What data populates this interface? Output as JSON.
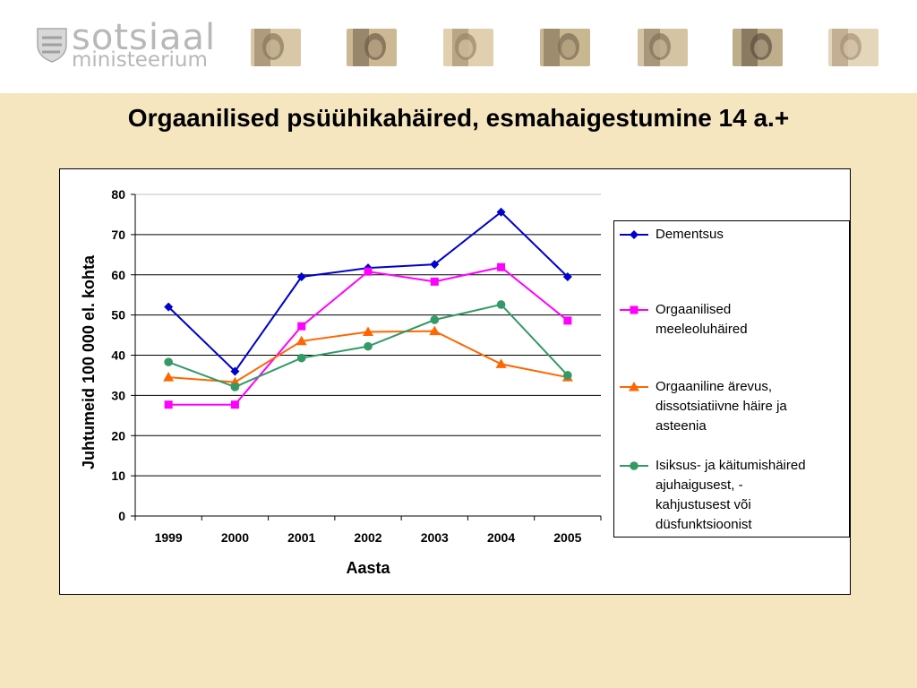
{
  "header": {
    "logo_word1": "sotsiaal",
    "logo_word2": "ministeerium",
    "photos": [
      "portrait-photo-1",
      "portrait-photo-2",
      "portrait-photo-3",
      "portrait-photo-4",
      "portrait-photo-5",
      "portrait-photo-6",
      "portrait-photo-7"
    ]
  },
  "title": "Orgaanilised psüühikahäired, esmahaigestumine 14 a.+",
  "chart_data": {
    "type": "line",
    "title": "Orgaanilised psüühikahäired, esmahaigestumine 14 a.+",
    "xlabel": "Aasta",
    "ylabel": "Juhtumeid 100 000 el. kohta",
    "categories": [
      "1999",
      "2000",
      "2001",
      "2002",
      "2003",
      "2004",
      "2005"
    ],
    "ylim": [
      0,
      80
    ],
    "yticks": [
      0,
      10,
      20,
      30,
      40,
      50,
      60,
      70,
      80
    ],
    "grid": true,
    "legend_position": "right",
    "series": [
      {
        "name": "Dementsus",
        "color": "#0000cc",
        "marker": "diamond",
        "values": [
          52,
          36,
          59.5,
          61.7,
          62.6,
          75.6,
          59.5
        ]
      },
      {
        "name": "Orgaanilised meeleoluhäired",
        "color": "#ff00ff",
        "marker": "square",
        "values": [
          27.7,
          27.7,
          47.2,
          60.8,
          58.3,
          61.9,
          48.6
        ]
      },
      {
        "name": "Orgaaniline ärevus, dissotsiatiivne häire ja asteenia",
        "color": "#ff6600",
        "marker": "triangle",
        "values": [
          34.5,
          33.3,
          43.5,
          45.8,
          46,
          37.8,
          34.5
        ]
      },
      {
        "name": "Isiksus- ja käitumishäired ajuhaigusest, -kahjustusest või düsfunktsioonist",
        "color": "#339966",
        "marker": "circle",
        "values": [
          38.3,
          32.1,
          39.3,
          42.2,
          48.8,
          52.6,
          35
        ]
      }
    ]
  },
  "legend_lines": [
    [
      "Dementsus"
    ],
    [
      "Orgaanilised",
      "meeleoluhäired"
    ],
    [
      "Orgaaniline ärevus,",
      "dissotsiatiivne häire ja",
      "asteenia"
    ],
    [
      "Isiksus- ja käitumishäired",
      "ajuhaigusest, -",
      "kahjustusest või",
      "düsfunktsioonist"
    ]
  ]
}
